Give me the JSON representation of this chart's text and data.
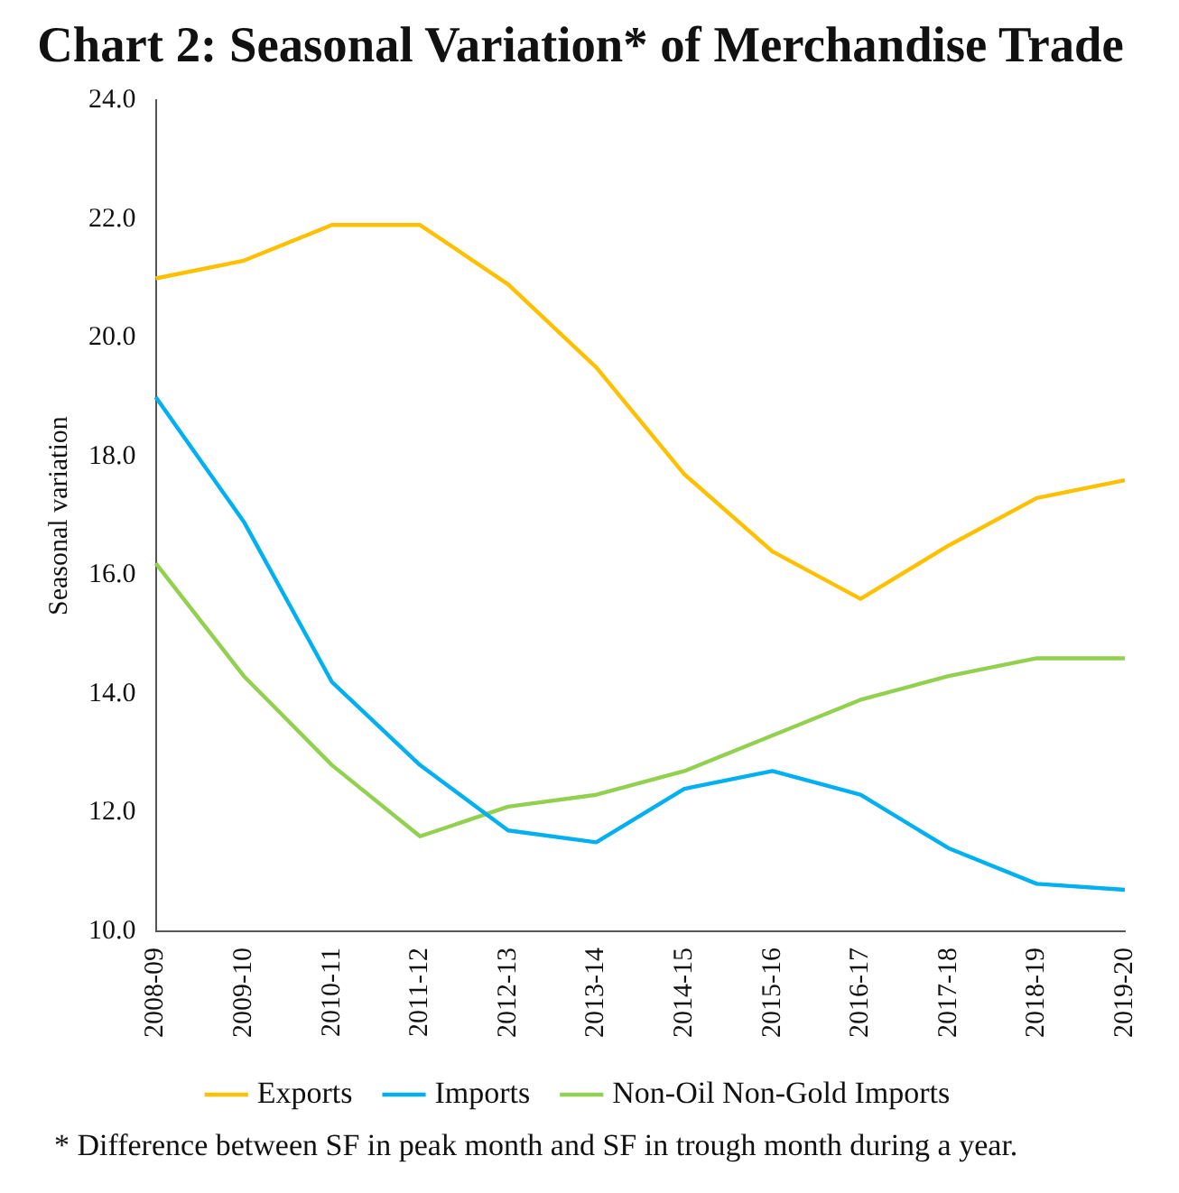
{
  "chart_data": {
    "type": "line",
    "title": "Chart 2: Seasonal Variation* of Merchandise Trade",
    "ylabel": "Seasonal variation",
    "categories": [
      "2008-09",
      "2009-10",
      "2010-11",
      "2011-12",
      "2012-13",
      "2013-14",
      "2014-15",
      "2015-16",
      "2016-17",
      "2017-18",
      "2018-19",
      "2019-20"
    ],
    "series": [
      {
        "name": "Exports",
        "color": "#ffc000",
        "values": [
          21.0,
          21.3,
          21.9,
          21.9,
          20.9,
          19.5,
          17.7,
          16.4,
          15.6,
          16.5,
          17.3,
          17.6
        ]
      },
      {
        "name": "Imports",
        "color": "#00b0f0",
        "values": [
          19.0,
          16.9,
          14.2,
          12.8,
          11.7,
          11.5,
          12.4,
          12.7,
          12.3,
          11.4,
          10.8,
          10.7
        ]
      },
      {
        "name": "Non-Oil Non-Gold Imports",
        "color": "#92d050",
        "values": [
          16.2,
          14.3,
          12.8,
          11.6,
          12.1,
          12.3,
          12.7,
          13.3,
          13.9,
          14.3,
          14.6,
          14.6
        ]
      }
    ],
    "ylim": [
      10,
      24
    ],
    "yticks": [
      {
        "value": 10,
        "label": "10.0"
      },
      {
        "value": 12,
        "label": "12.0"
      },
      {
        "value": 14,
        "label": "14.0"
      },
      {
        "value": 16,
        "label": "16.0"
      },
      {
        "value": 18,
        "label": "18.0"
      },
      {
        "value": 20,
        "label": "20.0"
      },
      {
        "value": 22,
        "label": "22.0"
      },
      {
        "value": 24,
        "label": "24.0"
      }
    ],
    "grid": false,
    "legend": "bottom",
    "marker": "none",
    "line_style": "solid",
    "annotations": [
      "* Difference between SF in peak month and SF in trough month during a year."
    ]
  }
}
